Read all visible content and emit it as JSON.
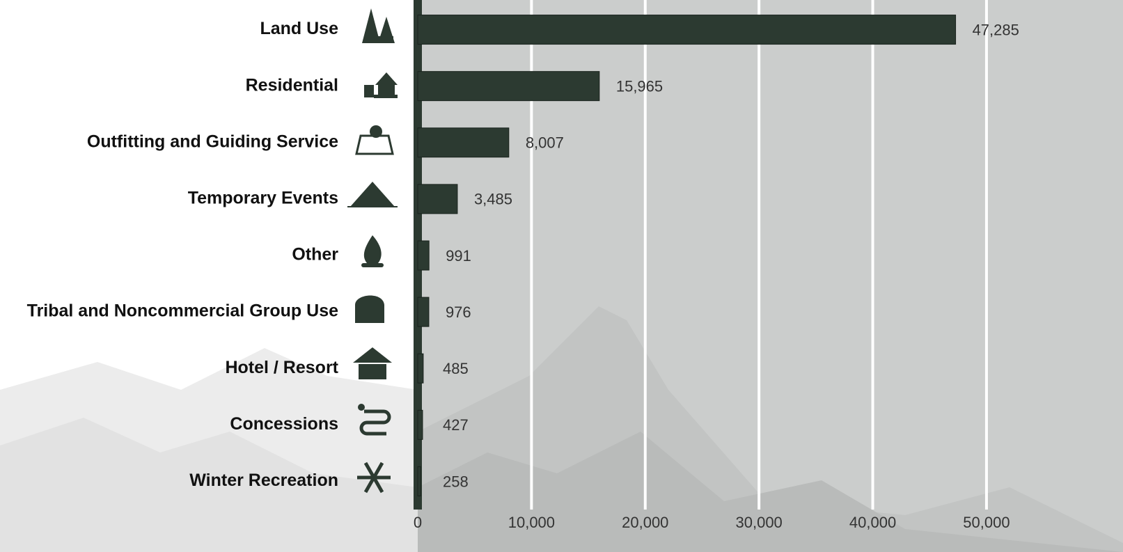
{
  "chart_data": {
    "type": "bar",
    "orientation": "horizontal",
    "categories": [
      "Land Use",
      "Residential",
      "Outfitting and Guiding Service",
      "Temporary Events",
      "Other",
      "Tribal and Noncommercial Group Use",
      "Hotel / Resort",
      "Concessions",
      "Winter Recreation"
    ],
    "values": [
      47285,
      15965,
      8007,
      3485,
      991,
      976,
      485,
      427,
      258
    ],
    "value_labels": [
      "47,285",
      "15,965",
      "8,007",
      "3,485",
      "991",
      "976",
      "485",
      "427",
      "258"
    ],
    "color": "#2c3a31",
    "xlim": [
      0,
      62000
    ],
    "xticks": [
      0,
      {
        "value": 10000,
        "label": "10,000"
      },
      {
        "value": 20000,
        "label": "20,000"
      },
      {
        "value": 30000,
        "label": "30,000"
      },
      {
        "value": 40000,
        "label": "40,000"
      },
      {
        "value": 50000,
        "label": "50,000"
      }
    ],
    "grid": true
  }
}
